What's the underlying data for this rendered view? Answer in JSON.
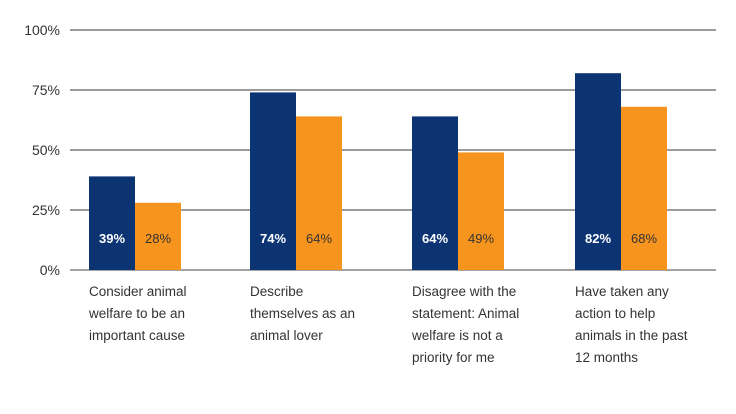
{
  "chart_data": {
    "type": "bar",
    "categories": [
      "Consider animal welfare to be an important cause",
      "Describe themselves as an animal lover",
      "Disagree with the statement: Animal welfare is not a priority for me",
      "Have taken any action to help animals in the past 12 months"
    ],
    "series": [
      {
        "values": [
          39,
          74,
          64,
          82
        ],
        "labels": [
          "39%",
          "74%",
          "64%",
          "82%"
        ],
        "color": "#0c3372",
        "label_color": "#ffffff"
      },
      {
        "values": [
          28,
          64,
          49,
          68
        ],
        "labels": [
          "28%",
          "64%",
          "49%",
          "68%"
        ],
        "color": "#f7941e",
        "label_color": "#333333"
      }
    ],
    "yticks": [
      "0%",
      "25%",
      "50%",
      "75%",
      "100%"
    ],
    "ylim": [
      0,
      100
    ],
    "grid": true,
    "legend": false
  }
}
